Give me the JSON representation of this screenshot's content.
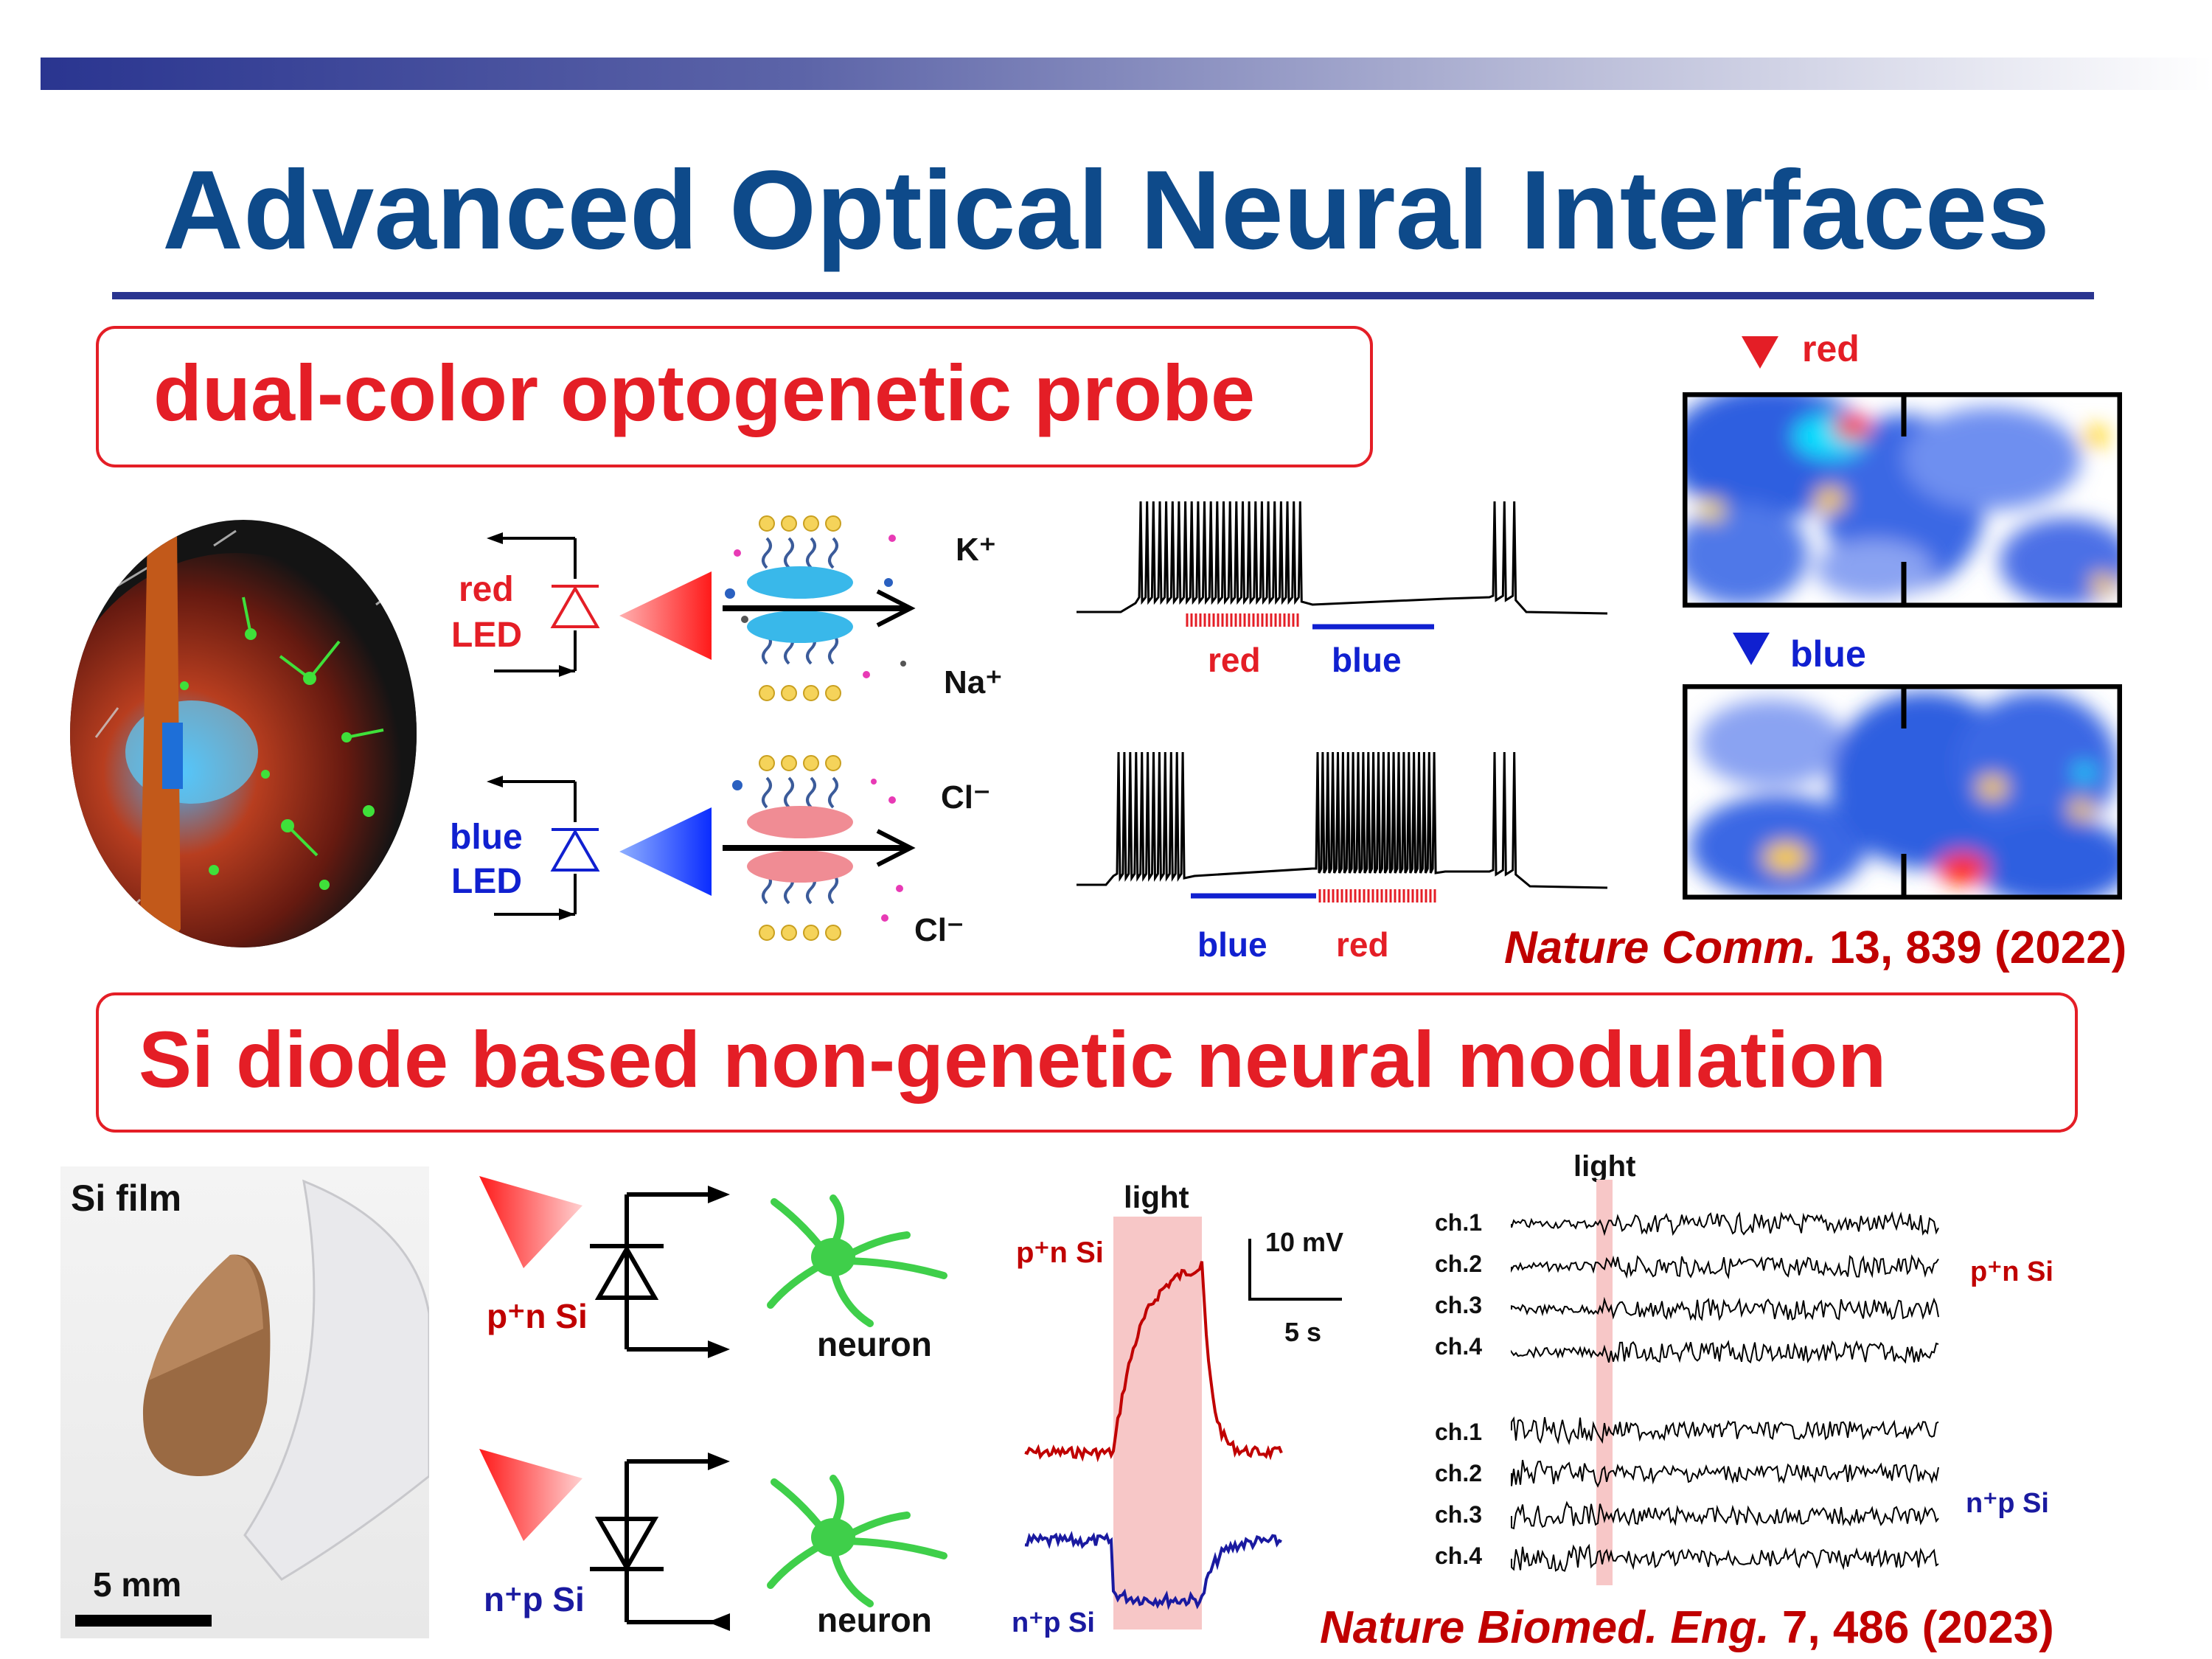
{
  "title": "Advanced Optical Neural Interfaces",
  "section1": {
    "heading": "dual-color optogenetic probe",
    "circuit_labels": {
      "red_led_line1": "red",
      "red_led_line2": "LED",
      "blue_led_line1": "blue",
      "blue_led_line2": "LED"
    },
    "ions": {
      "k": "K⁺",
      "na": "Na⁺",
      "cl_top": "Cl⁻",
      "cl_bottom": "Cl⁻"
    },
    "trace_labels": {
      "top_first": "red",
      "top_second": "blue",
      "bottom_first": "blue",
      "bottom_second": "red"
    },
    "heatmap_labels": {
      "top": "red",
      "bottom": "blue"
    },
    "reference": {
      "journal": "Nature Comm.",
      "rest": " 13, 839 (2022)"
    }
  },
  "section2": {
    "heading": "Si diode based non-genetic neural modulation",
    "film": {
      "label": "Si film",
      "scale": "5 mm"
    },
    "diodes": {
      "top": "p⁺n Si",
      "bottom": "n⁺p Si",
      "neuron_top": "neuron",
      "neuron_bottom": "neuron"
    },
    "potential": {
      "light": "light",
      "top": "p⁺n Si",
      "bottom": "n⁺p Si",
      "scale_v": "10 mV",
      "scale_t": "5 s"
    },
    "raster": {
      "light": "light",
      "channels_top": [
        "ch.1",
        "ch.2",
        "ch.3",
        "ch.4"
      ],
      "channels_bottom": [
        "ch.1",
        "ch.2",
        "ch.3",
        "ch.4"
      ],
      "label_top": "p⁺n Si",
      "label_bottom": "n⁺p Si"
    },
    "reference": {
      "journal": "Nature Biomed. Eng.",
      "rest": " 7, 486 (2023)"
    }
  },
  "colors": {
    "title": "#0e4a8a",
    "accent_red": "#e41e26",
    "accent_blue": "#1020d0",
    "bar": "#2a3590"
  }
}
